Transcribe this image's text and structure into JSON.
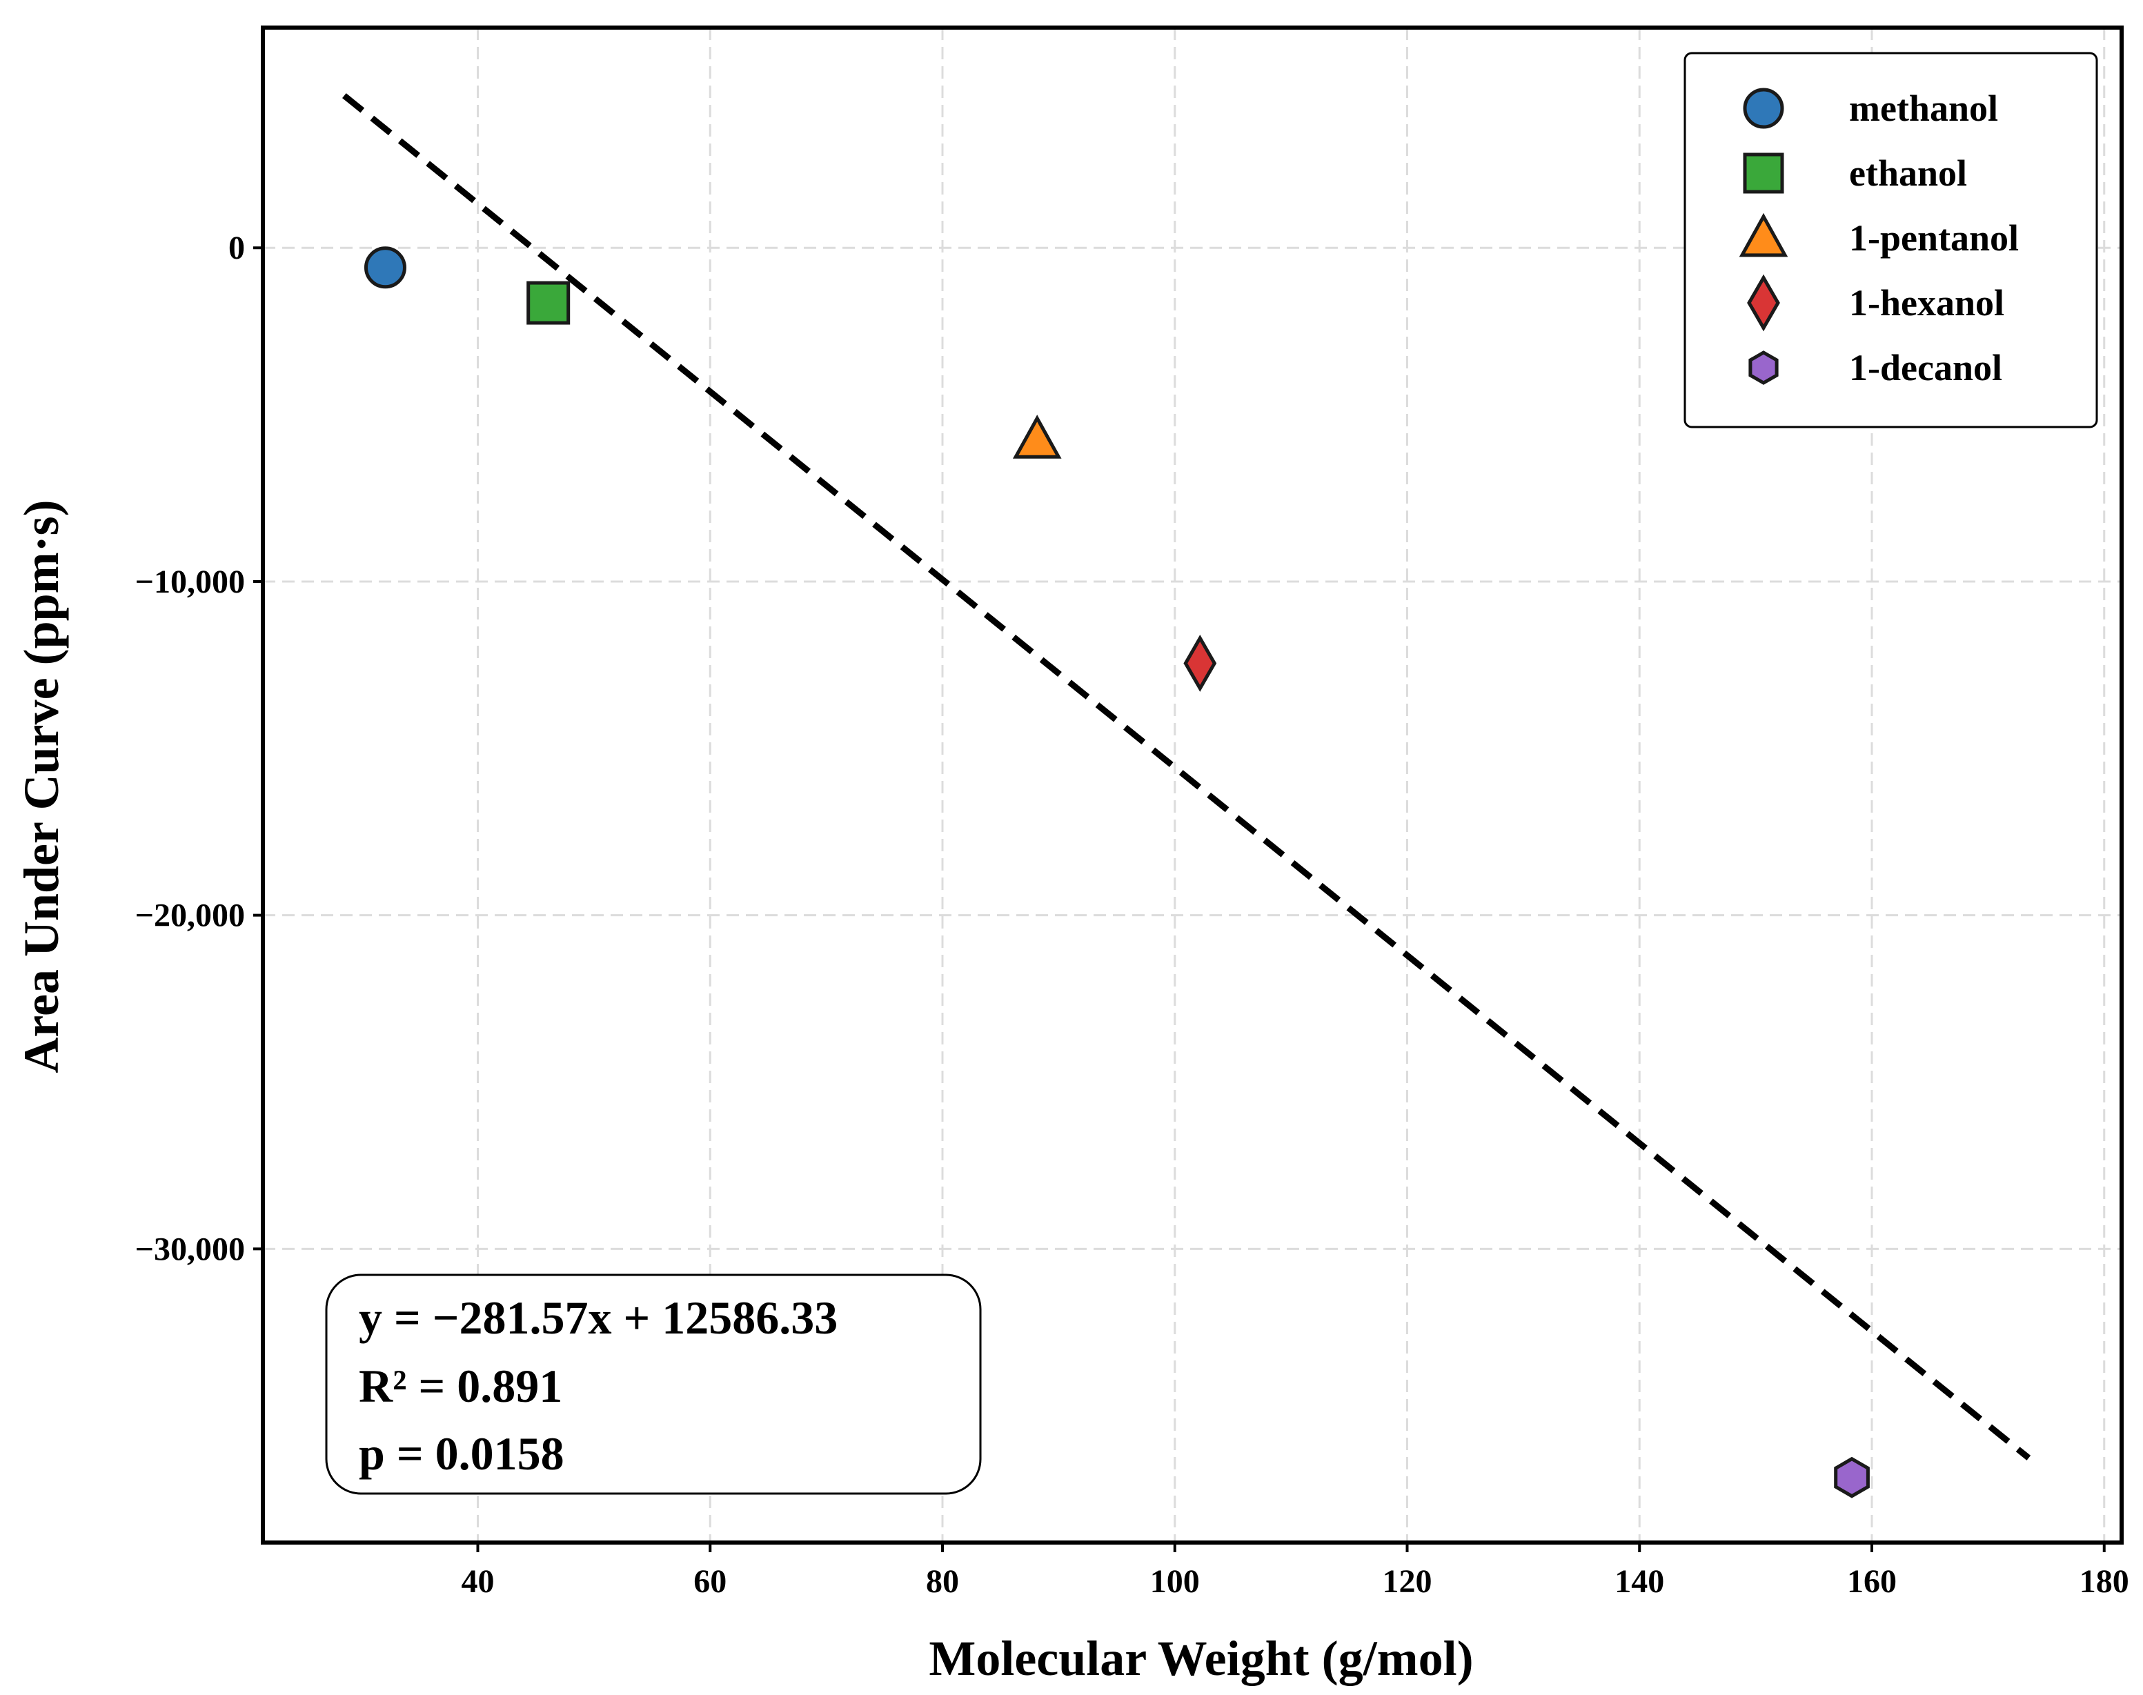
{
  "chart_data": {
    "type": "scatter",
    "xlabel": "Molecular Weight (g/mol)",
    "ylabel": "Area Under Curve (ppm·s)",
    "xlim": [
      21.5,
      181.5
    ],
    "ylim": [
      -38800,
      6600
    ],
    "x_ticks": [
      40,
      60,
      80,
      100,
      120,
      140,
      160,
      180
    ],
    "y_ticks": [
      0,
      -10000,
      -20000,
      -30000
    ],
    "y_tick_labels": [
      "0",
      "−10,000",
      "−20,000",
      "−30,000"
    ],
    "grid": true,
    "legend_position": "top-right",
    "series": [
      {
        "name": "methanol",
        "x": 32.04,
        "y": -590,
        "color": "#2f78b8",
        "marker": "circle"
      },
      {
        "name": "ethanol",
        "x": 46.07,
        "y": -1650,
        "color": "#3aa83a",
        "marker": "square"
      },
      {
        "name": "1-pentanol",
        "x": 88.15,
        "y": -5750,
        "color": "#ff8c1a",
        "marker": "triangle"
      },
      {
        "name": "1-hexanol",
        "x": 102.17,
        "y": -12450,
        "color": "#d93535",
        "marker": "diamond"
      },
      {
        "name": "1-decanol",
        "x": 158.28,
        "y": -36850,
        "color": "#9966cc",
        "marker": "hexagon"
      }
    ],
    "fit_line": {
      "slope": -281.57,
      "intercept": 12586.33,
      "x_range": [
        28.5,
        173.5
      ],
      "style": "dashed"
    },
    "annotation": {
      "lines": [
        "y = −281.57x + 12586.33",
        "R² = 0.891",
        "p = 0.0158"
      ]
    }
  }
}
